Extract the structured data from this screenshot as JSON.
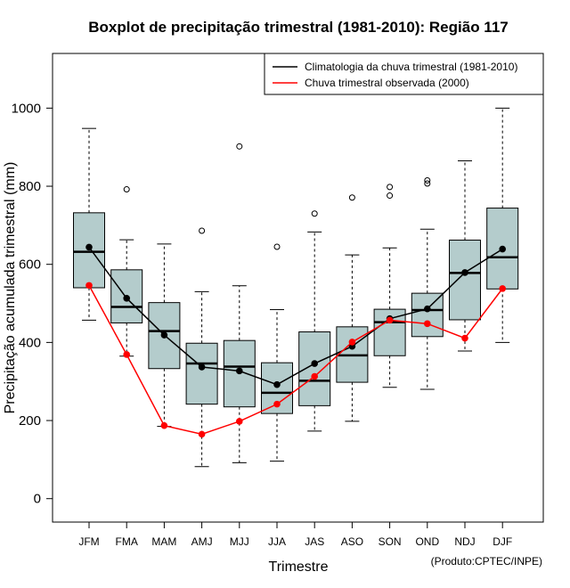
{
  "colors": {
    "box_fill": "#b4cccc",
    "climatology": "#000000",
    "observed": "#ff0000",
    "whisker": "#000000"
  },
  "chart_data": {
    "type": "boxplot",
    "title": "Boxplot de precipitação trimestral (1981-2010): Região 117",
    "xlabel": "Trimestre",
    "ylabel": "Precipitação acumulada trimestral (mm)",
    "credit": "(Produto:CPTEC/INPE)",
    "ylim": [
      -60,
      1140
    ],
    "yticks": [
      0,
      200,
      400,
      600,
      800,
      1000
    ],
    "categories": [
      "JFM",
      "FMA",
      "MAM",
      "AMJ",
      "MJJ",
      "JJA",
      "JAS",
      "ASO",
      "SON",
      "OND",
      "NDJ",
      "DJF"
    ],
    "boxes": [
      {
        "min": 457,
        "q1": 540,
        "median": 632,
        "q3": 732,
        "max": 948,
        "outliers": []
      },
      {
        "min": 365,
        "q1": 450,
        "median": 491,
        "q3": 586,
        "max": 663,
        "outliers": [
          792
        ]
      },
      {
        "min": 185,
        "q1": 333,
        "median": 429,
        "q3": 502,
        "max": 652,
        "outliers": []
      },
      {
        "min": 82,
        "q1": 242,
        "median": 346,
        "q3": 398,
        "max": 530,
        "outliers": [
          686
        ]
      },
      {
        "min": 92,
        "q1": 235,
        "median": 338,
        "q3": 405,
        "max": 545,
        "outliers": [
          902
        ]
      },
      {
        "min": 96,
        "q1": 218,
        "median": 271,
        "q3": 348,
        "max": 484,
        "outliers": [
          645
        ]
      },
      {
        "min": 173,
        "q1": 238,
        "median": 302,
        "q3": 427,
        "max": 683,
        "outliers": [
          730
        ]
      },
      {
        "min": 198,
        "q1": 298,
        "median": 367,
        "q3": 440,
        "max": 624,
        "outliers": [
          771
        ]
      },
      {
        "min": 285,
        "q1": 366,
        "median": 452,
        "q3": 485,
        "max": 642,
        "outliers": [
          776,
          798
        ]
      },
      {
        "min": 280,
        "q1": 415,
        "median": 483,
        "q3": 526,
        "max": 690,
        "outliers": [
          807,
          815
        ]
      },
      {
        "min": 378,
        "q1": 458,
        "median": 578,
        "q3": 662,
        "max": 865,
        "outliers": []
      },
      {
        "min": 400,
        "q1": 537,
        "median": 618,
        "q3": 744,
        "max": 1000,
        "outliers": []
      }
    ],
    "series": [
      {
        "name": "Climatologia da chuva trimestral (1981-2010)",
        "color": "#000000",
        "values": [
          644,
          513,
          419,
          337,
          327,
          292,
          346,
          390,
          461,
          486,
          579,
          639
        ]
      },
      {
        "name": "Chuva trimestral observada (2000)",
        "color": "#ff0000",
        "values": [
          546,
          369,
          187,
          165,
          198,
          242,
          313,
          401,
          457,
          448,
          411,
          538
        ]
      }
    ],
    "legend_position": "top-right"
  }
}
